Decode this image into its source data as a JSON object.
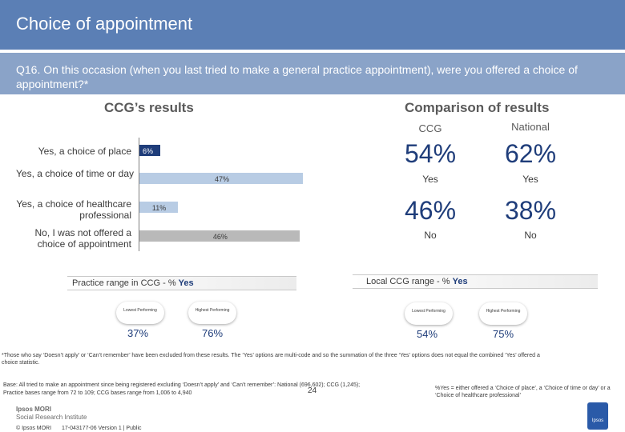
{
  "header": {
    "title": "Choice of appointment",
    "question": "Q16. On this occasion (when you last tried to make a general practice appointment), were you offered a choice of appointment?*"
  },
  "ccg_section": {
    "heading": "CCG’s results"
  },
  "comparison": {
    "heading": "Comparison of results",
    "col_ccg": "CCG",
    "col_national": "National",
    "yes_ccg": "54%",
    "yes_national": "62%",
    "yes_label_ccg": "Yes",
    "yes_label_national": "Yes",
    "no_ccg": "46%",
    "no_national": "38%",
    "no_label_ccg": "No",
    "no_label_national": "No"
  },
  "chart_data": {
    "type": "bar",
    "orientation": "horizontal",
    "categories": [
      "Yes, a choice of place",
      "Yes, a choice of time or day",
      "Yes, a choice of healthcare professional",
      "No, I was not offered a choice of appointment"
    ],
    "values": [
      6,
      47,
      11,
      46
    ],
    "value_labels": [
      "6%",
      "47%",
      "11%",
      "46%"
    ],
    "unit": "%",
    "xlim": [
      0,
      55
    ],
    "colors": [
      "#1f3d7a",
      "#b8cce4",
      "#b8cce4",
      "#b9b9b9"
    ]
  },
  "practice_range": {
    "title_prefix": "Practice range in CCG - % ",
    "title_bold": "Yes",
    "lowest_label": "Lowest Performing",
    "highest_label": "Highest Performing",
    "lowest_value": "37%",
    "highest_value": "76%"
  },
  "local_range": {
    "title_prefix": "Local CCG range - % ",
    "title_bold": "Yes",
    "lowest_label": "Lowest Performing",
    "highest_label": "Highest Performing",
    "lowest_value": "54%",
    "highest_value": "75%"
  },
  "footer": {
    "footnote": "*Those who say ‘Doesn’t apply’ or ‘Can’t remember’ have been excluded from these results. The ‘Yes’ options are multi-code and so the summation of the three ‘Yes’ options does not equal the combined ‘Yes’ offered a choice statistic.",
    "base_line1": "Base: All tried to make an appointment since being registered excluding ‘Doesn’t apply’ and ‘Can’t remember’: National (696,602); CCG (1,245);",
    "base_line2": "Practice bases range from 72 to 109; CCG bases range from 1,006 to 4,940",
    "yes_note": "%Yes = either offered a ‘Choice of place’, a ‘Choice of time or day’ or a ‘Choice of healthcare professional’",
    "logo_line1": "Ipsos MORI",
    "logo_line2": "Social Research Institute",
    "copyright": "© Ipsos MORI",
    "ref": "17-043177-06 Version 1 | Public",
    "page_number": "24",
    "corner_logo": "Ipsos"
  }
}
